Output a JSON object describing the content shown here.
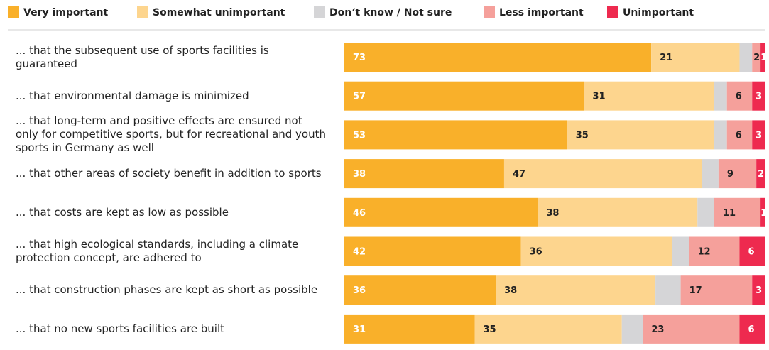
{
  "chart_data": {
    "type": "stacked-bar-horizontal",
    "categories": [
      "... that the subsequent use of sports facilities is guaranteed",
      "... that environmental damage is minimized",
      "... that long-term and positive effects are ensured not only for competitive sports, but for recreational and youth sports in Germany as well",
      "... that other areas of society benefit in addition to sports",
      "... that costs are kept as low as possible",
      "... that high ecological standards, including a climate protection concept, are adhered to",
      "... that construction phases are kept as short as possible",
      "... that no new sports facilities are built"
    ],
    "xlim": [
      0,
      100
    ],
    "series": [
      {
        "name": "Very important",
        "color": "#f9b02a",
        "label_color": "#ffffff",
        "values": [
          73,
          57,
          53,
          38,
          46,
          42,
          36,
          31
        ]
      },
      {
        "name": "Somewhat unimportant",
        "color": "#fdd58e",
        "label_color": "#222222",
        "values": [
          21,
          31,
          35,
          47,
          38,
          36,
          38,
          35
        ]
      },
      {
        "name": "Don‘t know / Not sure",
        "color": "#d5d5d7",
        "show_labels": false,
        "values": [
          3,
          3,
          3,
          4,
          4,
          4,
          6,
          5
        ]
      },
      {
        "name": "Less important",
        "color": "#f5a09b",
        "label_color": "#222222",
        "values": [
          2,
          6,
          6,
          9,
          11,
          12,
          17,
          23
        ]
      },
      {
        "name": "Unimportant",
        "color": "#ee2a4f",
        "label_color": "#ffffff",
        "values": [
          1,
          3,
          3,
          2,
          1,
          6,
          3,
          6
        ]
      }
    ]
  }
}
